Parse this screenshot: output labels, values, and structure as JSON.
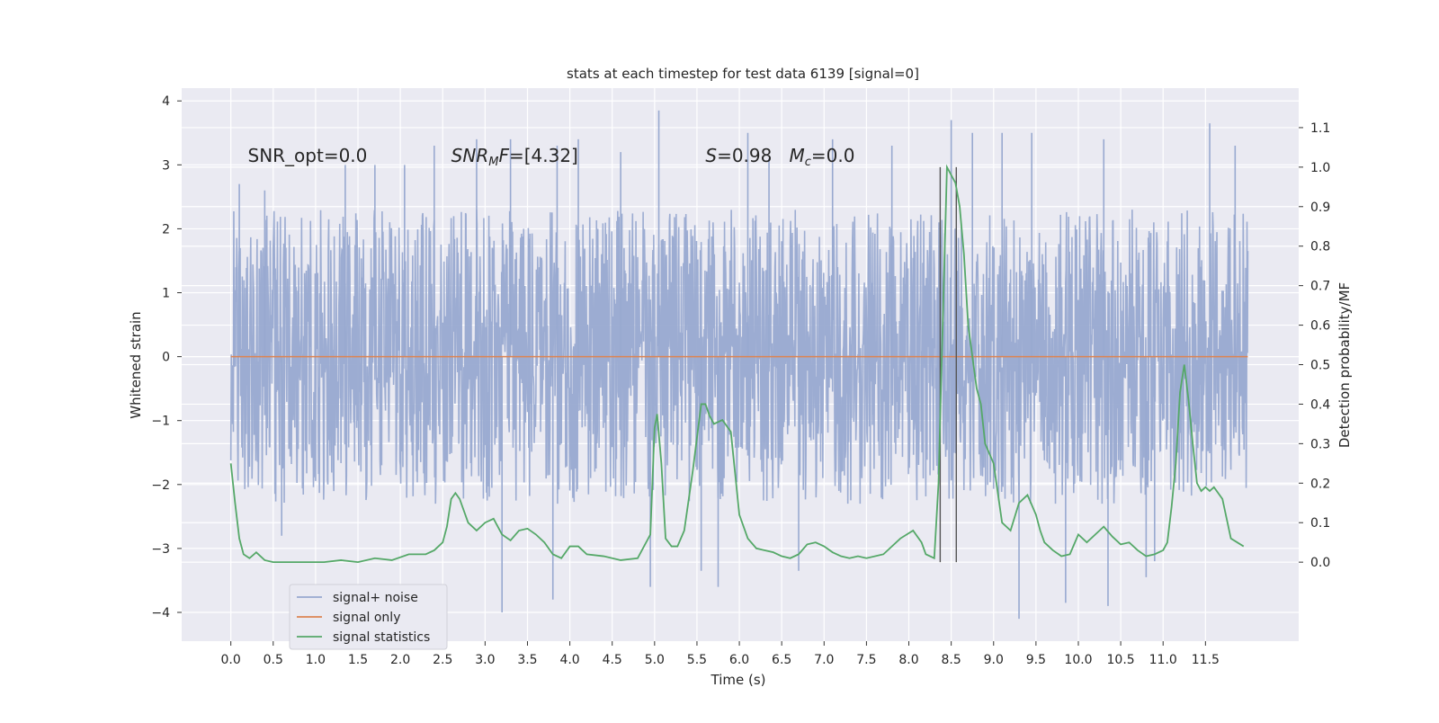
{
  "chart_data": {
    "type": "line",
    "title": "stats at each timestep for test data 6139 [signal=0]",
    "xlabel": "Time (s)",
    "ylabel_left": "Whitened strain",
    "ylabel_right": "Detection probability/MF",
    "xlim": [
      -0.58,
      12.6
    ],
    "ylim_left": [
      -4.45,
      4.2
    ],
    "ylim_right": [
      -0.2,
      1.2
    ],
    "x_ticks": [
      0.0,
      0.5,
      1.0,
      1.5,
      2.0,
      2.5,
      3.0,
      3.5,
      4.0,
      4.5,
      5.0,
      5.5,
      6.0,
      6.5,
      7.0,
      7.5,
      8.0,
      8.5,
      9.0,
      9.5,
      10.0,
      10.5,
      11.0,
      11.5
    ],
    "x_tick_labels": [
      "0.0",
      "0.5",
      "1.0",
      "1.5",
      "2.0",
      "2.5",
      "3.0",
      "3.5",
      "4.0",
      "4.5",
      "5.0",
      "5.5",
      "6.0",
      "6.5",
      "7.0",
      "7.5",
      "8.0",
      "8.5",
      "9.0",
      "9.5",
      "10.0",
      "10.5",
      "11.0",
      "11.5"
    ],
    "y_left_ticks": [
      -4,
      -3,
      -2,
      -1,
      0,
      1,
      2,
      3,
      4
    ],
    "y_left_tick_labels": [
      "−4",
      "−3",
      "−2",
      "−1",
      "0",
      "1",
      "2",
      "3",
      "4"
    ],
    "y_right_ticks": [
      0.0,
      0.1,
      0.2,
      0.3,
      0.4,
      0.5,
      0.6,
      0.7,
      0.8,
      0.9,
      1.0,
      1.1
    ],
    "y_right_tick_labels": [
      "0.0",
      "0.1",
      "0.2",
      "0.3",
      "0.4",
      "0.5",
      "0.6",
      "0.7",
      "0.8",
      "0.9",
      "1.0",
      "1.1"
    ],
    "grid": true,
    "legend_position": "lower-left",
    "series": [
      {
        "name": "signal+ noise",
        "axis": "left",
        "color": "#98a9d0",
        "x_range": [
          0.0,
          12.0
        ],
        "typical_abs_max": 2.3,
        "peaks": [
          {
            "x": 0.1,
            "y": 2.7
          },
          {
            "x": 0.4,
            "y": 2.6
          },
          {
            "x": 0.6,
            "y": -2.8
          },
          {
            "x": 1.35,
            "y": 3.0
          },
          {
            "x": 1.7,
            "y": 3.0
          },
          {
            "x": 2.05,
            "y": 3.0
          },
          {
            "x": 2.4,
            "y": 3.3
          },
          {
            "x": 2.9,
            "y": 3.4
          },
          {
            "x": 3.2,
            "y": -4.0
          },
          {
            "x": 3.3,
            "y": 3.4
          },
          {
            "x": 3.85,
            "y": 3.3
          },
          {
            "x": 3.8,
            "y": -3.8
          },
          {
            "x": 4.1,
            "y": 3.4
          },
          {
            "x": 4.6,
            "y": 3.2
          },
          {
            "x": 4.95,
            "y": -3.6
          },
          {
            "x": 5.05,
            "y": 3.85
          },
          {
            "x": 5.55,
            "y": -3.35
          },
          {
            "x": 5.75,
            "y": -3.6
          },
          {
            "x": 6.1,
            "y": 3.5
          },
          {
            "x": 6.35,
            "y": 3.1
          },
          {
            "x": 6.7,
            "y": -3.35
          },
          {
            "x": 7.1,
            "y": 3.4
          },
          {
            "x": 7.8,
            "y": 3.3
          },
          {
            "x": 8.5,
            "y": 3.7
          },
          {
            "x": 8.75,
            "y": 3.5
          },
          {
            "x": 9.1,
            "y": 3.5
          },
          {
            "x": 9.3,
            "y": -4.1
          },
          {
            "x": 9.45,
            "y": 3.5
          },
          {
            "x": 9.85,
            "y": -3.85
          },
          {
            "x": 10.3,
            "y": 3.4
          },
          {
            "x": 10.35,
            "y": -3.9
          },
          {
            "x": 10.8,
            "y": -3.45
          },
          {
            "x": 10.9,
            "y": -3.2
          },
          {
            "x": 11.55,
            "y": 3.65
          },
          {
            "x": 11.85,
            "y": 3.3
          }
        ]
      },
      {
        "name": "signal only",
        "axis": "left",
        "color": "#dd8452",
        "x": [
          0.0,
          12.0
        ],
        "y": [
          0.0,
          0.0
        ]
      },
      {
        "name": "signal statistics",
        "axis": "right",
        "color": "#55a868",
        "x": [
          0.0,
          0.05,
          0.1,
          0.15,
          0.22,
          0.3,
          0.4,
          0.5,
          0.7,
          0.9,
          1.1,
          1.3,
          1.5,
          1.7,
          1.9,
          2.1,
          2.3,
          2.4,
          2.45,
          2.5,
          2.55,
          2.6,
          2.65,
          2.7,
          2.8,
          2.9,
          3.0,
          3.1,
          3.2,
          3.3,
          3.4,
          3.5,
          3.6,
          3.7,
          3.8,
          3.9,
          4.0,
          4.1,
          4.2,
          4.4,
          4.6,
          4.8,
          4.95,
          5.0,
          5.03,
          5.08,
          5.13,
          5.2,
          5.27,
          5.35,
          5.45,
          5.55,
          5.6,
          5.65,
          5.7,
          5.8,
          5.9,
          6.0,
          6.1,
          6.2,
          6.3,
          6.4,
          6.5,
          6.6,
          6.7,
          6.8,
          6.9,
          7.0,
          7.1,
          7.2,
          7.3,
          7.4,
          7.5,
          7.7,
          7.9,
          8.05,
          8.15,
          8.2,
          8.3,
          8.35,
          8.38,
          8.45,
          8.55,
          8.6,
          8.65,
          8.7,
          8.8,
          8.85,
          8.9,
          9.0,
          9.1,
          9.2,
          9.3,
          9.4,
          9.5,
          9.55,
          9.6,
          9.7,
          9.8,
          9.9,
          10.0,
          10.1,
          10.2,
          10.3,
          10.4,
          10.5,
          10.6,
          10.7,
          10.8,
          10.9,
          11.0,
          11.05,
          11.1,
          11.15,
          11.2,
          11.25,
          11.3,
          11.35,
          11.4,
          11.45,
          11.5,
          11.55,
          11.6,
          11.7,
          11.8,
          11.95
        ],
        "y": [
          0.25,
          0.15,
          0.06,
          0.02,
          0.01,
          0.025,
          0.005,
          0.0,
          0.0,
          0.0,
          0.0,
          0.005,
          0.0,
          0.01,
          0.005,
          0.02,
          0.02,
          0.03,
          0.04,
          0.05,
          0.09,
          0.16,
          0.175,
          0.16,
          0.1,
          0.08,
          0.1,
          0.11,
          0.07,
          0.055,
          0.08,
          0.085,
          0.07,
          0.05,
          0.02,
          0.01,
          0.04,
          0.04,
          0.02,
          0.015,
          0.005,
          0.01,
          0.07,
          0.34,
          0.375,
          0.25,
          0.06,
          0.04,
          0.04,
          0.08,
          0.23,
          0.4,
          0.4,
          0.37,
          0.35,
          0.36,
          0.33,
          0.12,
          0.06,
          0.035,
          0.03,
          0.025,
          0.015,
          0.01,
          0.02,
          0.045,
          0.05,
          0.04,
          0.025,
          0.015,
          0.01,
          0.015,
          0.01,
          0.02,
          0.06,
          0.08,
          0.05,
          0.02,
          0.01,
          0.2,
          0.45,
          1.0,
          0.96,
          0.9,
          0.78,
          0.6,
          0.44,
          0.4,
          0.3,
          0.25,
          0.1,
          0.08,
          0.15,
          0.17,
          0.12,
          0.08,
          0.05,
          0.03,
          0.015,
          0.02,
          0.07,
          0.05,
          0.07,
          0.09,
          0.065,
          0.045,
          0.05,
          0.03,
          0.015,
          0.02,
          0.03,
          0.05,
          0.14,
          0.25,
          0.43,
          0.5,
          0.41,
          0.3,
          0.2,
          0.18,
          0.19,
          0.18,
          0.19,
          0.16,
          0.06,
          0.04
        ]
      }
    ],
    "vertical_markers": [
      8.37,
      8.56
    ],
    "annotations": [
      {
        "id": "snr_opt",
        "x": 0.2,
        "y_left": 3.05,
        "text": "SNR_opt=0.0"
      },
      {
        "id": "snr_mf",
        "x": 2.6,
        "y_left": 3.05,
        "text": "SNR_MF=[4.32]"
      },
      {
        "id": "s_mc",
        "x": 5.6,
        "y_left": 3.05,
        "text": "S=0.98   M_c=0.0"
      }
    ]
  }
}
